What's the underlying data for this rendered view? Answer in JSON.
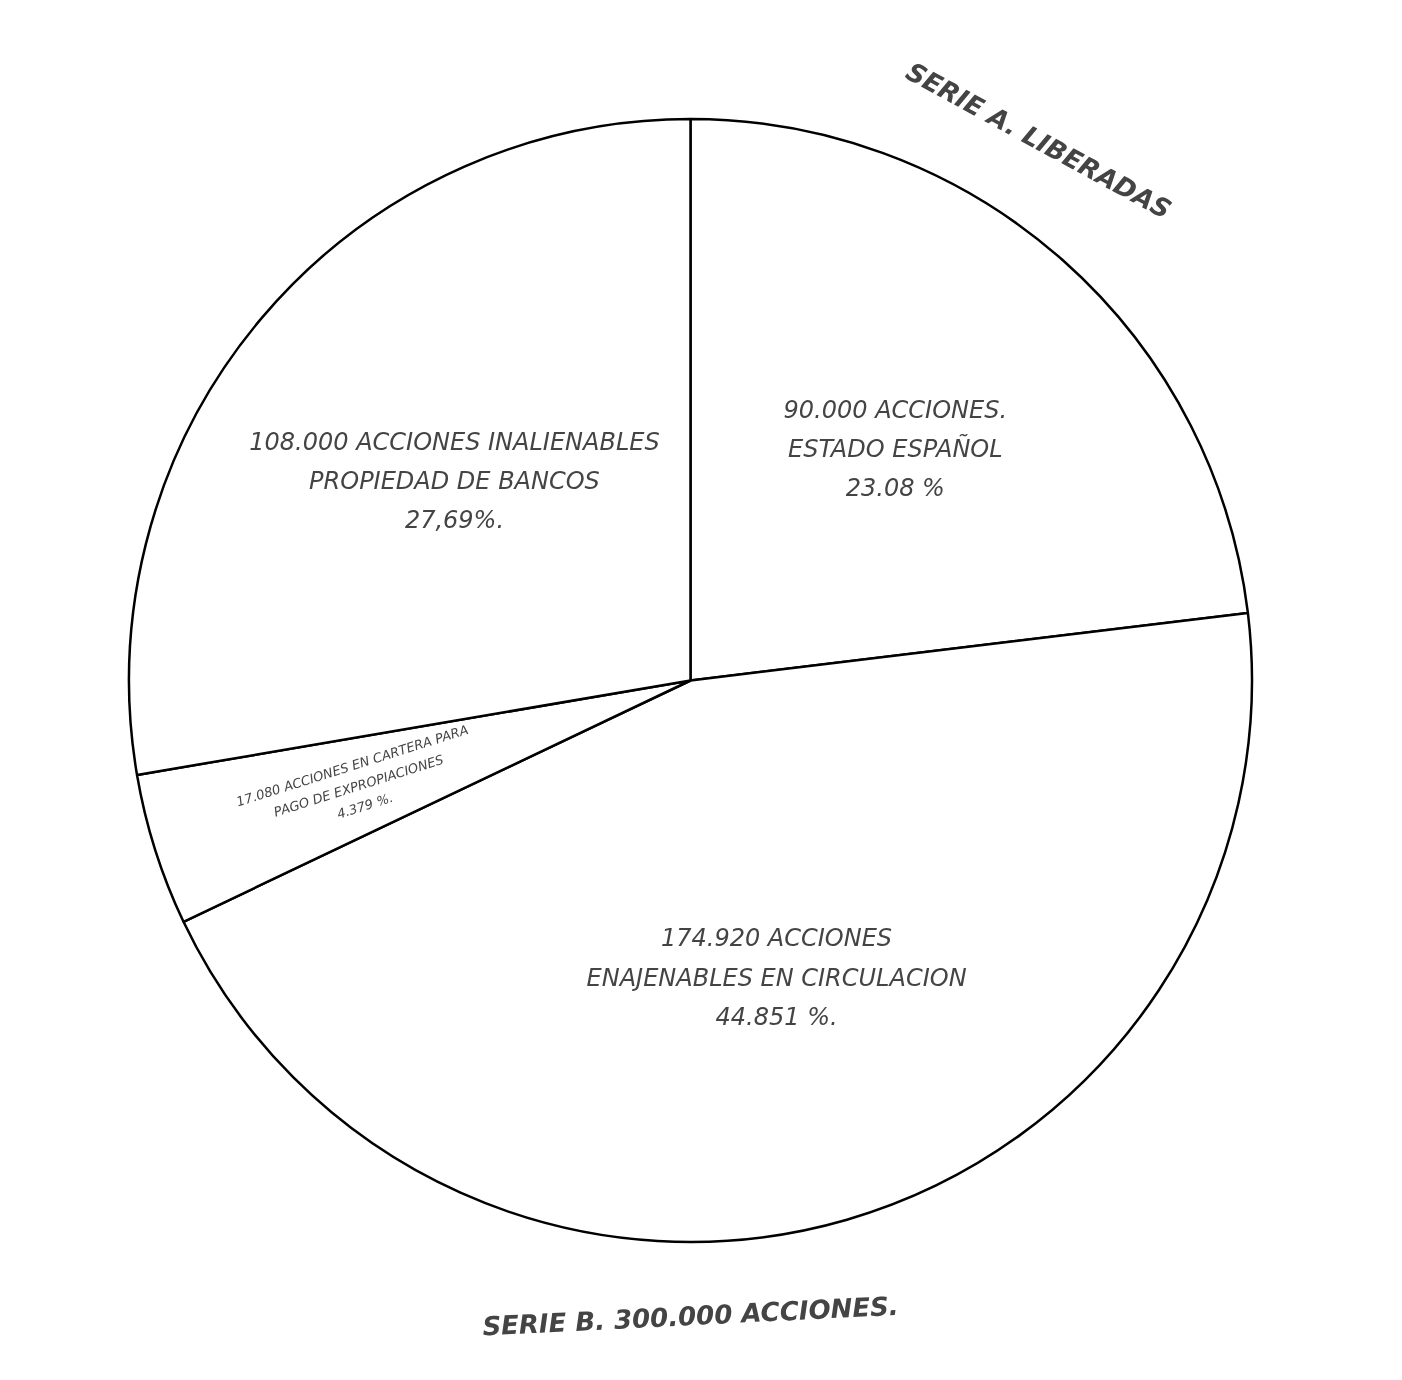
{
  "chart_data": {
    "type": "pie",
    "categories": [
      null,
      null,
      null,
      null
    ],
    "values": [
      23.08,
      44.851,
      4.379,
      27.69
    ],
    "colors": [
      "#ffffff",
      "#ffffff",
      "#ffffff",
      "#ffffff"
    ],
    "value_labels": [
      "90.000 ACCIONES.\nESTADO ESPAÑOL\n23.08 %",
      "174.920 ACCIONES\nENAJENABLES EN CIRCULACION\n44.851 %.",
      "17.080 ACCIONES EN CARTERA PARA\nPAGO DE EXPROPIACIONES\n4.379 %.",
      "108.000 ACCIONES INALIENABLES\nPROPIEDAD DE BANCOS\n27,69%."
    ],
    "annotations": [
      "SERIE A. LIBERADAS",
      "SERIE B. 300.000 ACCIONES."
    ]
  }
}
